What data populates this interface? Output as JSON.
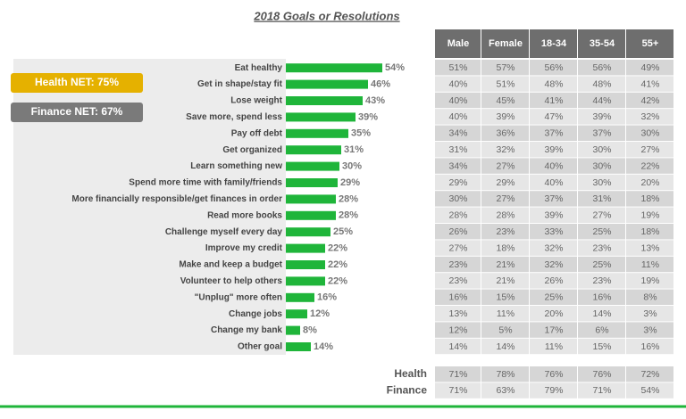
{
  "chart_data": {
    "type": "bar",
    "orientation": "horizontal",
    "title": "2018 Goals or Resolutions",
    "categories": [
      "Eat healthy",
      "Get in shape/stay fit",
      "Lose weight",
      "Save more, spend less",
      "Pay off debt",
      "Get organized",
      "Learn something new",
      "Spend more time with family/friends",
      "More financially responsible/get finances in order",
      "Read more books",
      "Challenge myself every day",
      "Improve my credit",
      "Make and keep a budget",
      "Volunteer to help others",
      "\"Unplug\" more often",
      "Change jobs",
      "Change my bank",
      "Other goal"
    ],
    "values": [
      54,
      46,
      43,
      39,
      35,
      31,
      30,
      29,
      28,
      28,
      25,
      22,
      22,
      22,
      16,
      12,
      8,
      14
    ],
    "value_labels": [
      "54%",
      "46%",
      "43%",
      "39%",
      "35%",
      "31%",
      "30%",
      "29%",
      "28%",
      "28%",
      "25%",
      "22%",
      "22%",
      "22%",
      "16%",
      "12%",
      "8%",
      "14%"
    ],
    "color": "#1fb53a",
    "annotations": [
      "Health NET: 75%",
      "Finance NET: 67%"
    ]
  },
  "table": {
    "columns": [
      "Male",
      "Female",
      "18-34",
      "35-54",
      "55+"
    ],
    "rows": [
      [
        "51%",
        "57%",
        "56%",
        "56%",
        "49%"
      ],
      [
        "40%",
        "51%",
        "48%",
        "48%",
        "41%"
      ],
      [
        "40%",
        "45%",
        "41%",
        "44%",
        "42%"
      ],
      [
        "40%",
        "39%",
        "47%",
        "39%",
        "32%"
      ],
      [
        "34%",
        "36%",
        "37%",
        "37%",
        "30%"
      ],
      [
        "31%",
        "32%",
        "39%",
        "30%",
        "27%"
      ],
      [
        "34%",
        "27%",
        "40%",
        "30%",
        "22%"
      ],
      [
        "29%",
        "29%",
        "40%",
        "30%",
        "20%"
      ],
      [
        "30%",
        "27%",
        "37%",
        "31%",
        "18%"
      ],
      [
        "28%",
        "28%",
        "39%",
        "27%",
        "19%"
      ],
      [
        "26%",
        "23%",
        "33%",
        "25%",
        "18%"
      ],
      [
        "27%",
        "18%",
        "32%",
        "23%",
        "13%"
      ],
      [
        "23%",
        "21%",
        "32%",
        "25%",
        "11%"
      ],
      [
        "23%",
        "21%",
        "26%",
        "23%",
        "19%"
      ],
      [
        "16%",
        "15%",
        "25%",
        "16%",
        "8%"
      ],
      [
        "13%",
        "11%",
        "20%",
        "14%",
        "3%"
      ],
      [
        "12%",
        "5%",
        "17%",
        "6%",
        "3%"
      ],
      [
        "14%",
        "14%",
        "11%",
        "15%",
        "16%"
      ]
    ]
  },
  "summary": {
    "rows": [
      {
        "label": "Health",
        "cells": [
          "71%",
          "78%",
          "76%",
          "76%",
          "72%"
        ]
      },
      {
        "label": "Finance",
        "cells": [
          "71%",
          "63%",
          "79%",
          "71%",
          "54%"
        ]
      }
    ]
  }
}
